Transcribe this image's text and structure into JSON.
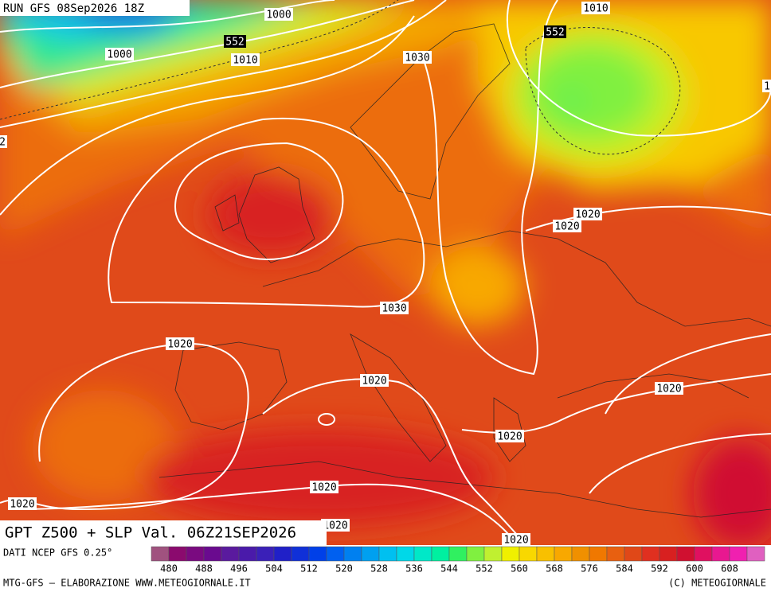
{
  "header": {
    "run": "RUN GFS 08Sep2026 18Z"
  },
  "contour_labels": [
    {
      "text": "1000",
      "style": "white"
    },
    {
      "text": "1000",
      "style": "white"
    },
    {
      "text": "552",
      "style": "black"
    },
    {
      "text": "1010",
      "style": "white"
    },
    {
      "text": "1030",
      "style": "white"
    },
    {
      "text": "1010",
      "style": "white"
    },
    {
      "text": "552",
      "style": "black"
    },
    {
      "text": "1020",
      "style": "white"
    },
    {
      "text": "1020",
      "style": "white"
    },
    {
      "text": "1030",
      "style": "white"
    },
    {
      "text": "1020",
      "style": "white"
    },
    {
      "text": "1020",
      "style": "white"
    },
    {
      "text": "1020",
      "style": "white"
    },
    {
      "text": "1020",
      "style": "white"
    },
    {
      "text": "1020",
      "style": "white"
    },
    {
      "text": "1020",
      "style": "white"
    },
    {
      "text": "1020",
      "style": "white"
    },
    {
      "text": "1020",
      "style": "white"
    },
    {
      "text": "2",
      "style": "white"
    },
    {
      "text": "1",
      "style": "white"
    }
  ],
  "title": "GPT Z500 + SLP Val. 06Z21SEP2026",
  "source": "DATI NCEP GFS 0.25°",
  "scale": {
    "colors": [
      "#a0527f",
      "#8b0a6e",
      "#7a0a80",
      "#6a0a8f",
      "#5a1a9e",
      "#4a1aaa",
      "#3a20b8",
      "#2020c8",
      "#1030d8",
      "#0040e8",
      "#0060f0",
      "#0080f0",
      "#00a0f0",
      "#00c0f0",
      "#00d8e8",
      "#00e8c8",
      "#00f0a0",
      "#30f060",
      "#80f040",
      "#c0f030",
      "#f0f000",
      "#f8d800",
      "#f8c000",
      "#f8a800",
      "#f09000",
      "#f07800",
      "#e86010",
      "#e04818",
      "#e03020",
      "#d82020",
      "#d01030",
      "#e01060",
      "#e81890",
      "#f020b0",
      "#e060c0"
    ],
    "labels": [
      480,
      488,
      496,
      504,
      512,
      520,
      528,
      536,
      544,
      552,
      560,
      568,
      576,
      584,
      592,
      600,
      608
    ]
  },
  "footer": {
    "left": "MTG-GFS — ELABORAZIONE WWW.METEOGIORNALE.IT",
    "right": "(C) METEOGIORNALE"
  }
}
